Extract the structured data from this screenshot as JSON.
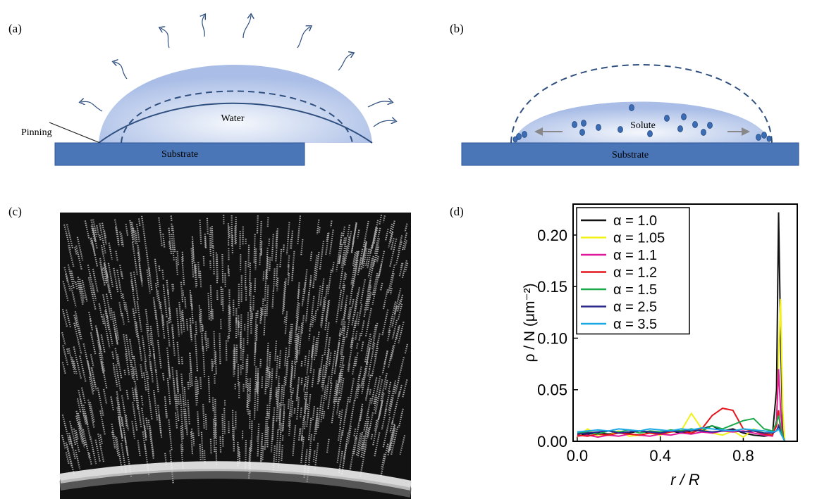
{
  "panels": {
    "a": {
      "label": "(a)",
      "pinning": "Pinning",
      "water": "Water",
      "substrate": "Substrate"
    },
    "b": {
      "label": "(b)",
      "solute": "Solute",
      "substrate": "Substrate"
    },
    "c": {
      "label": "(c)"
    },
    "d": {
      "label": "(d)"
    }
  },
  "chart_data": {
    "type": "line",
    "xlabel": "r / R",
    "ylabel": "ρ / N (μm⁻²)",
    "x": [
      0,
      0.05,
      0.1,
      0.15,
      0.2,
      0.25,
      0.3,
      0.35,
      0.4,
      0.45,
      0.5,
      0.55,
      0.6,
      0.65,
      0.7,
      0.75,
      0.8,
      0.85,
      0.9,
      0.94,
      0.96,
      0.97,
      0.98,
      0.99,
      1.0
    ],
    "xlim": [
      -0.02,
      1.06
    ],
    "ylim": [
      0,
      0.23
    ],
    "xticks": [
      {
        "value": 0,
        "label": "0.0"
      },
      0.4,
      0.8
    ],
    "yticks": [
      {
        "value": 0,
        "label": "0.00"
      },
      {
        "value": 0.05,
        "label": "0.05"
      },
      {
        "value": 0.1,
        "label": "0.10"
      },
      {
        "value": 0.15,
        "label": "0.15"
      },
      {
        "value": 0.2,
        "label": "0.20"
      }
    ],
    "legend": "upper-left",
    "series": [
      {
        "name": "α = 1.0",
        "color": "#111111",
        "values": [
          0.006,
          0.007,
          0.008,
          0.007,
          0.009,
          0.008,
          0.01,
          0.008,
          0.009,
          0.01,
          0.008,
          0.01,
          0.012,
          0.015,
          0.01,
          0.012,
          0.008,
          0.006,
          0.005,
          0.006,
          0.05,
          0.222,
          0.1,
          0.01,
          0.0
        ]
      },
      {
        "name": "α = 1.05",
        "color": "#f2f21a",
        "values": [
          0.004,
          0.012,
          0.005,
          0.006,
          0.01,
          0.005,
          0.006,
          0.008,
          0.006,
          0.009,
          0.01,
          0.027,
          0.012,
          0.008,
          0.006,
          0.01,
          0.004,
          0.012,
          0.008,
          0.006,
          0.02,
          0.08,
          0.138,
          0.03,
          0.0
        ]
      },
      {
        "name": "α = 1.1",
        "color": "#e0189a",
        "values": [
          0.005,
          0.006,
          0.004,
          0.006,
          0.005,
          0.007,
          0.006,
          0.005,
          0.007,
          0.006,
          0.008,
          0.007,
          0.009,
          0.008,
          0.01,
          0.009,
          0.01,
          0.008,
          0.006,
          0.005,
          0.02,
          0.07,
          0.03,
          0.005,
          0.0
        ]
      },
      {
        "name": "α = 1.2",
        "color": "#e3161d",
        "values": [
          0.006,
          0.005,
          0.007,
          0.006,
          0.008,
          0.007,
          0.006,
          0.008,
          0.007,
          0.009,
          0.01,
          0.008,
          0.012,
          0.025,
          0.032,
          0.03,
          0.012,
          0.01,
          0.007,
          0.006,
          0.015,
          0.03,
          0.01,
          0.005,
          0.0
        ]
      },
      {
        "name": "α = 1.5",
        "color": "#1aa84a",
        "values": [
          0.008,
          0.009,
          0.007,
          0.01,
          0.009,
          0.011,
          0.008,
          0.01,
          0.009,
          0.011,
          0.01,
          0.012,
          0.01,
          0.015,
          0.012,
          0.016,
          0.02,
          0.022,
          0.012,
          0.01,
          0.018,
          0.025,
          0.015,
          0.005,
          0.0
        ]
      },
      {
        "name": "α = 2.5",
        "color": "#2b2a8c",
        "values": [
          0.007,
          0.008,
          0.009,
          0.01,
          0.008,
          0.009,
          0.01,
          0.009,
          0.008,
          0.01,
          0.009,
          0.011,
          0.01,
          0.009,
          0.01,
          0.011,
          0.009,
          0.01,
          0.008,
          0.008,
          0.01,
          0.015,
          0.008,
          0.004,
          0.0
        ]
      },
      {
        "name": "α = 3.5",
        "color": "#1ba9e6",
        "values": [
          0.009,
          0.01,
          0.011,
          0.01,
          0.012,
          0.011,
          0.01,
          0.012,
          0.011,
          0.01,
          0.012,
          0.011,
          0.013,
          0.012,
          0.011,
          0.01,
          0.012,
          0.011,
          0.01,
          0.009,
          0.01,
          0.012,
          0.008,
          0.004,
          0.0
        ]
      }
    ]
  }
}
